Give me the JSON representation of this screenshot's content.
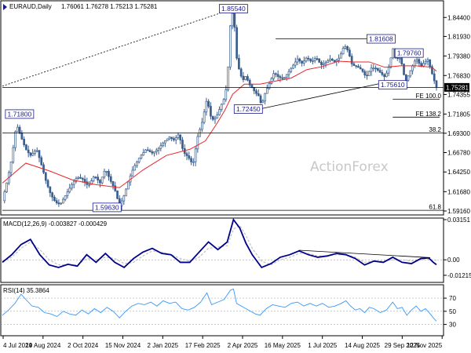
{
  "header": {
    "symbol": "EURAUD,Daily",
    "ohlc": "1.76061 1.76278 1.75213 1.75281"
  },
  "watermark": "ActionForex",
  "macd_label": "MACD(12,26,9) -0.003827 -0.000429",
  "rsi_label": "RSI(14) 35.3864",
  "colors": {
    "candles": "#3a5f8f",
    "ma": "#e8262a",
    "macd_line": "#00008b",
    "macd_signal": "#c0c0c0",
    "rsi": "#3399ff",
    "trendline": "#000000",
    "box_border": "#1a1a8c"
  },
  "chart_data": [
    {
      "type": "candlestick",
      "panel": "price",
      "yticks": [
        "1.84400",
        "1.81930",
        "1.79380",
        "1.76830",
        "1.74355",
        "1.71805",
        "1.69300",
        "1.66780",
        "1.64250",
        "1.61680",
        "1.59160"
      ],
      "ylim": [
        1.5885,
        1.8637
      ],
      "last_price": "1.75281",
      "xticks": [
        "4 Jul 2024",
        "19 Aug 2024",
        "2 Oct 2024",
        "15 Nov 2024",
        "2 Jan 2025",
        "17 Feb 2025",
        "2 Apr 2025",
        "16 May 2025",
        "1 Jul 2025",
        "14 Aug 2025",
        "29 Sep 2025",
        "12 Nov 2025"
      ],
      "price_path": [
        [
          0,
          1.605
        ],
        [
          6,
          1.63
        ],
        [
          12,
          1.66
        ],
        [
          18,
          1.705
        ],
        [
          24,
          1.688
        ],
        [
          30,
          1.672
        ],
        [
          36,
          1.664
        ],
        [
          44,
          1.672
        ],
        [
          50,
          1.652
        ],
        [
          56,
          1.63
        ],
        [
          62,
          1.613
        ],
        [
          68,
          1.603
        ],
        [
          74,
          1.6
        ],
        [
          82,
          1.614
        ],
        [
          90,
          1.628
        ],
        [
          96,
          1.636
        ],
        [
          103,
          1.633
        ],
        [
          110,
          1.624
        ],
        [
          118,
          1.638
        ],
        [
          125,
          1.628
        ],
        [
          132,
          1.647
        ],
        [
          138,
          1.632
        ],
        [
          144,
          1.62
        ],
        [
          150,
          1.598
        ],
        [
          156,
          1.612
        ],
        [
          162,
          1.632
        ],
        [
          168,
          1.648
        ],
        [
          176,
          1.662
        ],
        [
          184,
          1.672
        ],
        [
          192,
          1.667
        ],
        [
          200,
          1.673
        ],
        [
          207,
          1.682
        ],
        [
          214,
          1.688
        ],
        [
          220,
          1.684
        ],
        [
          226,
          1.692
        ],
        [
          232,
          1.668
        ],
        [
          238,
          1.662
        ],
        [
          244,
          1.652
        ],
        [
          250,
          1.688
        ],
        [
          256,
          1.708
        ],
        [
          262,
          1.738
        ],
        [
          268,
          1.71
        ],
        [
          274,
          1.714
        ],
        [
          280,
          1.729
        ],
        [
          284,
          1.738
        ],
        [
          288,
          1.758
        ],
        [
          292,
          1.835
        ],
        [
          295,
          1.851
        ],
        [
          297,
          1.838
        ],
        [
          300,
          1.792
        ],
        [
          304,
          1.772
        ],
        [
          308,
          1.762
        ],
        [
          312,
          1.768
        ],
        [
          316,
          1.757
        ],
        [
          320,
          1.752
        ],
        [
          324,
          1.746
        ],
        [
          328,
          1.742
        ],
        [
          332,
          1.729
        ],
        [
          336,
          1.744
        ],
        [
          342,
          1.758
        ],
        [
          348,
          1.772
        ],
        [
          354,
          1.766
        ],
        [
          360,
          1.764
        ],
        [
          366,
          1.772
        ],
        [
          372,
          1.781
        ],
        [
          378,
          1.79
        ],
        [
          384,
          1.784
        ],
        [
          390,
          1.792
        ],
        [
          396,
          1.786
        ],
        [
          402,
          1.792
        ],
        [
          408,
          1.782
        ],
        [
          414,
          1.785
        ],
        [
          420,
          1.79
        ],
        [
          426,
          1.786
        ],
        [
          432,
          1.792
        ],
        [
          438,
          1.808
        ],
        [
          443,
          1.8
        ],
        [
          448,
          1.782
        ],
        [
          454,
          1.78
        ],
        [
          460,
          1.776
        ],
        [
          466,
          1.766
        ],
        [
          472,
          1.778
        ],
        [
          478,
          1.778
        ],
        [
          484,
          1.772
        ],
        [
          490,
          1.766
        ],
        [
          496,
          1.782
        ],
        [
          500,
          1.805
        ],
        [
          504,
          1.788
        ],
        [
          508,
          1.793
        ],
        [
          512,
          1.782
        ],
        [
          516,
          1.76
        ],
        [
          520,
          1.768
        ],
        [
          524,
          1.778
        ],
        [
          530,
          1.791
        ],
        [
          536,
          1.78
        ],
        [
          540,
          1.785
        ],
        [
          545,
          1.789
        ],
        [
          550,
          1.772
        ],
        [
          553,
          1.762
        ],
        [
          556,
          1.753
        ]
      ],
      "ma_path": [
        [
          0,
          1.628
        ],
        [
          30,
          1.654
        ],
        [
          60,
          1.644
        ],
        [
          90,
          1.632
        ],
        [
          120,
          1.626
        ],
        [
          150,
          1.622
        ],
        [
          180,
          1.645
        ],
        [
          210,
          1.664
        ],
        [
          240,
          1.672
        ],
        [
          260,
          1.683
        ],
        [
          275,
          1.706
        ],
        [
          285,
          1.723
        ],
        [
          295,
          1.744
        ],
        [
          310,
          1.757
        ],
        [
          330,
          1.757
        ],
        [
          350,
          1.761
        ],
        [
          370,
          1.765
        ],
        [
          390,
          1.776
        ],
        [
          410,
          1.78
        ],
        [
          430,
          1.787
        ],
        [
          450,
          1.786
        ],
        [
          470,
          1.786
        ],
        [
          490,
          1.779
        ],
        [
          510,
          1.781
        ],
        [
          530,
          1.781
        ],
        [
          550,
          1.779
        ],
        [
          556,
          1.774
        ]
      ],
      "price_labels": [
        {
          "text": "1.85540",
          "x": 296,
          "y": 1.8554
        },
        {
          "text": "1.81608",
          "x": 485,
          "y": 1.8161
        },
        {
          "text": "1.79760",
          "x": 521,
          "y": 1.7976
        },
        {
          "text": "1.75610",
          "x": 500,
          "y": 1.7561
        },
        {
          "text": "1.72450",
          "x": 315,
          "y": 1.7245
        },
        {
          "text": "1.71800",
          "x": 22,
          "y": 1.718
        },
        {
          "text": "1.59630",
          "x": 134,
          "y": 1.5963
        }
      ],
      "fib_labels": [
        {
          "text": "FE 100.0",
          "y": 1.7375
        },
        {
          "text": "FE 138.2",
          "y": 1.714
        },
        {
          "text": "38.2",
          "y": 1.6935
        },
        {
          "text": "61.8",
          "y": 1.5925
        }
      ]
    },
    {
      "type": "line",
      "panel": "macd",
      "name": "MACD(12,26,9)",
      "yticks": [
        "0.03151",
        "0.00",
        "-0.012158"
      ],
      "ylim": [
        -0.0165,
        0.0315
      ],
      "macd_line": [
        [
          0,
          -0.002
        ],
        [
          12,
          0.004
        ],
        [
          24,
          0.012
        ],
        [
          36,
          0.016
        ],
        [
          48,
          0.004
        ],
        [
          60,
          -0.004
        ],
        [
          72,
          -0.006
        ],
        [
          84,
          -0.0035
        ],
        [
          96,
          -0.005
        ],
        [
          108,
          0.004
        ],
        [
          120,
          -0.002
        ],
        [
          132,
          0.005
        ],
        [
          144,
          -0.002
        ],
        [
          156,
          -0.006
        ],
        [
          168,
          0.001
        ],
        [
          180,
          0.006
        ],
        [
          192,
          0.009
        ],
        [
          204,
          0.005
        ],
        [
          216,
          0.004
        ],
        [
          228,
          -0.002
        ],
        [
          240,
          -0.002
        ],
        [
          252,
          0.006
        ],
        [
          264,
          0.014
        ],
        [
          276,
          0.008
        ],
        [
          288,
          0.014
        ],
        [
          296,
          0.0315
        ],
        [
          304,
          0.025
        ],
        [
          312,
          0.013
        ],
        [
          320,
          0.004
        ],
        [
          332,
          -0.006
        ],
        [
          344,
          -0.003
        ],
        [
          356,
          0.002
        ],
        [
          368,
          0.004
        ],
        [
          380,
          0.007
        ],
        [
          392,
          0.004
        ],
        [
          404,
          0.002
        ],
        [
          416,
          0.003
        ],
        [
          428,
          0.005
        ],
        [
          440,
          0.004
        ],
        [
          452,
          0.001
        ],
        [
          464,
          -0.004
        ],
        [
          476,
          -0.001
        ],
        [
          488,
          -0.002
        ],
        [
          500,
          0.002
        ],
        [
          512,
          -0.002
        ],
        [
          524,
          -0.003
        ],
        [
          536,
          0.001
        ],
        [
          546,
          0.0015
        ],
        [
          552,
          -0.002
        ],
        [
          556,
          -0.0038
        ]
      ],
      "signal_line": [
        [
          0,
          -0.001
        ],
        [
          12,
          0.002
        ],
        [
          24,
          0.009
        ],
        [
          36,
          0.014
        ],
        [
          48,
          0.008
        ],
        [
          60,
          0.0
        ],
        [
          72,
          -0.004
        ],
        [
          84,
          -0.004
        ],
        [
          96,
          -0.004
        ],
        [
          108,
          0.001
        ],
        [
          120,
          0.0
        ],
        [
          132,
          0.002
        ],
        [
          144,
          0.001
        ],
        [
          156,
          -0.003
        ],
        [
          168,
          -0.002
        ],
        [
          180,
          0.003
        ],
        [
          192,
          0.007
        ],
        [
          204,
          0.006
        ],
        [
          216,
          0.004
        ],
        [
          228,
          0.001
        ],
        [
          240,
          -0.001
        ],
        [
          252,
          0.002
        ],
        [
          264,
          0.009
        ],
        [
          276,
          0.01
        ],
        [
          288,
          0.011
        ],
        [
          296,
          0.024
        ],
        [
          304,
          0.027
        ],
        [
          312,
          0.019
        ],
        [
          320,
          0.009
        ],
        [
          332,
          -0.001
        ],
        [
          344,
          -0.004
        ],
        [
          356,
          0.0
        ],
        [
          368,
          0.002
        ],
        [
          380,
          0.005
        ],
        [
          392,
          0.005
        ],
        [
          404,
          0.003
        ],
        [
          416,
          0.003
        ],
        [
          428,
          0.004
        ],
        [
          440,
          0.004
        ],
        [
          452,
          0.002
        ],
        [
          464,
          -0.002
        ],
        [
          476,
          -0.001
        ],
        [
          488,
          -0.001
        ],
        [
          500,
          0.0
        ],
        [
          512,
          0.0
        ],
        [
          524,
          -0.001
        ],
        [
          536,
          0.0
        ],
        [
          546,
          0.0005
        ],
        [
          552,
          -0.0002
        ],
        [
          556,
          -0.0004
        ]
      ]
    },
    {
      "type": "line",
      "panel": "rsi",
      "name": "RSI(14)",
      "yticks": [
        "70",
        "50",
        "30"
      ],
      "ylim": [
        14,
        88
      ],
      "levels": [
        70,
        50,
        30
      ],
      "rsi_path": [
        [
          0,
          44
        ],
        [
          8,
          52
        ],
        [
          16,
          62
        ],
        [
          24,
          76
        ],
        [
          30,
          68
        ],
        [
          38,
          58
        ],
        [
          46,
          56
        ],
        [
          54,
          48
        ],
        [
          62,
          46
        ],
        [
          70,
          42
        ],
        [
          78,
          50
        ],
        [
          86,
          46
        ],
        [
          94,
          44
        ],
        [
          102,
          52
        ],
        [
          110,
          46
        ],
        [
          118,
          54
        ],
        [
          126,
          48
        ],
        [
          134,
          56
        ],
        [
          142,
          50
        ],
        [
          150,
          40
        ],
        [
          158,
          50
        ],
        [
          166,
          58
        ],
        [
          174,
          62
        ],
        [
          182,
          60
        ],
        [
          190,
          64
        ],
        [
          198,
          58
        ],
        [
          206,
          66
        ],
        [
          214,
          62
        ],
        [
          222,
          64
        ],
        [
          230,
          54
        ],
        [
          238,
          52
        ],
        [
          246,
          56
        ],
        [
          254,
          64
        ],
        [
          262,
          78
        ],
        [
          268,
          60
        ],
        [
          276,
          64
        ],
        [
          284,
          68
        ],
        [
          292,
          82
        ],
        [
          296,
          84
        ],
        [
          300,
          62
        ],
        [
          306,
          58
        ],
        [
          312,
          54
        ],
        [
          318,
          50
        ],
        [
          324,
          46
        ],
        [
          330,
          44
        ],
        [
          338,
          54
        ],
        [
          346,
          60
        ],
        [
          354,
          58
        ],
        [
          362,
          56
        ],
        [
          370,
          62
        ],
        [
          378,
          64
        ],
        [
          386,
          58
        ],
        [
          394,
          62
        ],
        [
          402,
          58
        ],
        [
          410,
          62
        ],
        [
          418,
          56
        ],
        [
          426,
          58
        ],
        [
          434,
          62
        ],
        [
          440,
          66
        ],
        [
          446,
          58
        ],
        [
          452,
          52
        ],
        [
          458,
          54
        ],
        [
          464,
          48
        ],
        [
          470,
          56
        ],
        [
          476,
          54
        ],
        [
          484,
          48
        ],
        [
          492,
          52
        ],
        [
          500,
          64
        ],
        [
          506,
          54
        ],
        [
          512,
          56
        ],
        [
          518,
          44
        ],
        [
          524,
          52
        ],
        [
          530,
          58
        ],
        [
          536,
          50
        ],
        [
          542,
          54
        ],
        [
          548,
          46
        ],
        [
          552,
          40
        ],
        [
          556,
          35
        ]
      ]
    }
  ]
}
